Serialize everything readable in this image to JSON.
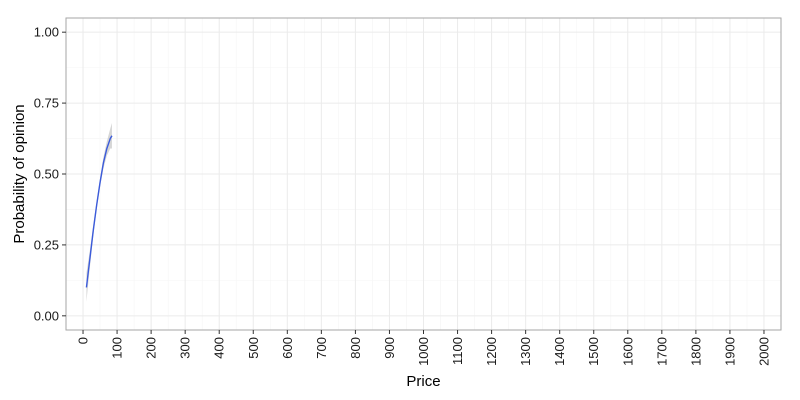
{
  "chart_data": {
    "type": "line",
    "title": "",
    "xlabel": "Price",
    "ylabel": "Probability of opinion",
    "xlim": [
      -50,
      2050
    ],
    "ylim": [
      -0.05,
      1.05
    ],
    "x_ticks": [
      0,
      100,
      200,
      300,
      400,
      500,
      600,
      700,
      800,
      900,
      1000,
      1100,
      1200,
      1300,
      1400,
      1500,
      1600,
      1700,
      1800,
      1900,
      2000
    ],
    "x_tick_labels": [
      "0",
      "100",
      "200",
      "300",
      "400",
      "500",
      "600",
      "700",
      "800",
      "900",
      "1000",
      "1100",
      "1200",
      "1300",
      "1400",
      "1500",
      "1600",
      "1700",
      "1800",
      "1900",
      "2000"
    ],
    "y_ticks": [
      0,
      0.25,
      0.5,
      0.75,
      1.0
    ],
    "y_tick_labels": [
      "0.00",
      "0.25",
      "0.50",
      "0.75",
      "1.00"
    ],
    "x_tick_label_rotation": "vertical",
    "grid": true,
    "legend": "none",
    "colors": {
      "line": "#3b5bdb",
      "ribbon": "#999999",
      "grid_major": "#ebebeb",
      "grid_minor": "#f5f5f5",
      "panel_border": "#a6a6a6",
      "tick_label": "#1a1a1a"
    },
    "series": [
      {
        "x": [
          10,
          20,
          30,
          40,
          50,
          60,
          70,
          80,
          85
        ],
        "y": [
          0.1,
          0.2,
          0.3,
          0.39,
          0.47,
          0.54,
          0.59,
          0.625,
          0.635
        ],
        "lower": [
          0.05,
          0.17,
          0.28,
          0.375,
          0.455,
          0.52,
          0.565,
          0.59,
          0.59
        ],
        "upper": [
          0.15,
          0.23,
          0.32,
          0.405,
          0.485,
          0.56,
          0.615,
          0.66,
          0.68
        ]
      }
    ]
  }
}
